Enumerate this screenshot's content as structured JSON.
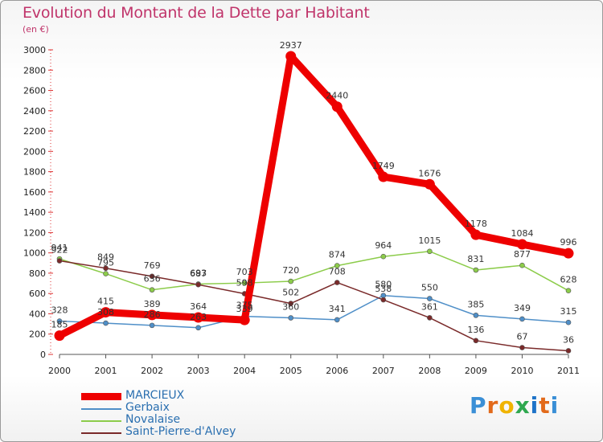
{
  "header": {
    "title": "Evolution du Montant de la Dette par Habitant",
    "subtitle": "(en €)"
  },
  "logo": {
    "letters": [
      "P",
      "r",
      "o",
      "x",
      "i",
      "t",
      "i"
    ],
    "colors": [
      "#3a8fd6",
      "#e26a1b",
      "#f0b400",
      "#2fa84f",
      "#1e73c8",
      "#e26a1b",
      "#3a8fd6"
    ]
  },
  "chart_data": {
    "type": "line",
    "title": "Evolution du Montant de la Dette par Habitant",
    "subtitle": "(en €)",
    "xlabel": "",
    "ylabel": "",
    "x": [
      "2000",
      "2001",
      "2002",
      "2003",
      "2004",
      "2005",
      "2006",
      "2007",
      "2008",
      "2009",
      "2010",
      "2011"
    ],
    "ylim": [
      0,
      3000
    ],
    "yticks": [
      0,
      200,
      400,
      600,
      800,
      1000,
      1200,
      1400,
      1600,
      1800,
      2000,
      2200,
      2400,
      2600,
      2800,
      3000
    ],
    "grid": false,
    "legend_position": "bottom-left",
    "series": [
      {
        "name": "MARCIEUX",
        "color": "#ee0000",
        "values": [
          185,
          415,
          389,
          364,
          339,
          2937,
          2440,
          1749,
          1676,
          1178,
          1084,
          996
        ],
        "labels": [
          "185",
          "415",
          "389",
          "364",
          "339",
          "2937",
          "2440",
          "1749",
          "1676",
          "1178",
          "1084",
          "996"
        ]
      },
      {
        "name": "Gerbaix",
        "color": "#4f8fc8",
        "values": [
          328,
          308,
          286,
          263,
          375,
          360,
          341,
          580,
          550,
          385,
          349,
          315
        ],
        "labels": [
          "328",
          "308",
          "286",
          "263",
          "375",
          "360",
          "341",
          "580",
          "550",
          "385",
          "349",
          "315"
        ]
      },
      {
        "name": "Novalaise",
        "color": "#8ccc4a",
        "values": [
          941,
          795,
          636,
          693,
          703,
          720,
          874,
          964,
          1015,
          831,
          877,
          628
        ],
        "labels": [
          "941",
          "795",
          "636",
          "693",
          "703",
          "720",
          "874",
          "964",
          "1015",
          "831",
          "877",
          "628"
        ]
      },
      {
        "name": "Saint-Pierre-d'Alvey",
        "color": "#7a2a2a",
        "values": [
          922,
          849,
          769,
          687,
          598,
          502,
          708,
          538,
          361,
          136,
          67,
          36
        ],
        "labels": [
          "922",
          "849",
          "769",
          "687",
          "598",
          "502",
          "708",
          "538",
          "361",
          "136",
          "67",
          "36"
        ]
      }
    ]
  }
}
